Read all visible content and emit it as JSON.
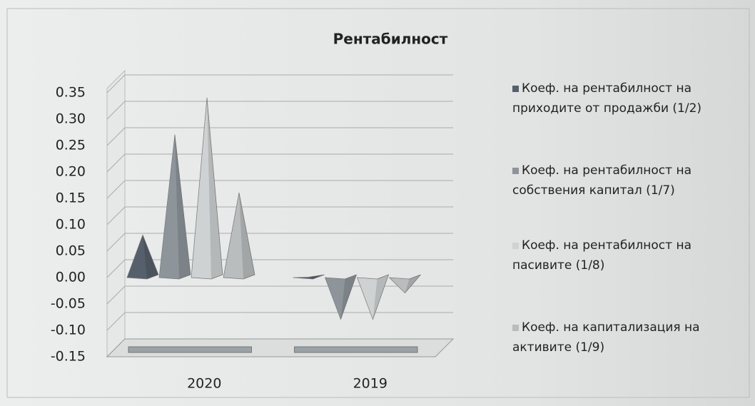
{
  "chart_data": {
    "type": "pyramid3d",
    "title": "Рентабилност",
    "categories": [
      "2020",
      "2019"
    ],
    "series": [
      {
        "name": "Коеф. на рентабилност на приходите от продажби (1/2)",
        "color": "#56606c",
        "values": [
          0.07,
          -0.01
        ]
      },
      {
        "name": "Коеф. на рентабилност на собствения капитал (1/7)",
        "color": "#8d959b",
        "values": [
          0.26,
          -0.09
        ]
      },
      {
        "name": "Коеф. на рентабилност на пасивите (1/8)",
        "color": "#cfd2d2",
        "values": [
          0.33,
          -0.09
        ]
      },
      {
        "name": "Коеф. на капитализация на активите (1/9)",
        "color": "#b9bdbd",
        "values": [
          0.15,
          -0.04
        ]
      }
    ],
    "ylim": [
      -0.15,
      0.35
    ],
    "yticks": [
      -0.15,
      {
        "value": -0.1,
        "label": "-0.10"
      },
      -0.05,
      {
        "value": 0,
        "label": "0.00"
      },
      0.05,
      {
        "value": 0.1,
        "label": "0.10"
      },
      0.15,
      {
        "value": 0.2,
        "label": "0.20"
      },
      0.25,
      {
        "value": 0.3,
        "label": "0.30"
      },
      0.35
    ],
    "grid": true
  }
}
